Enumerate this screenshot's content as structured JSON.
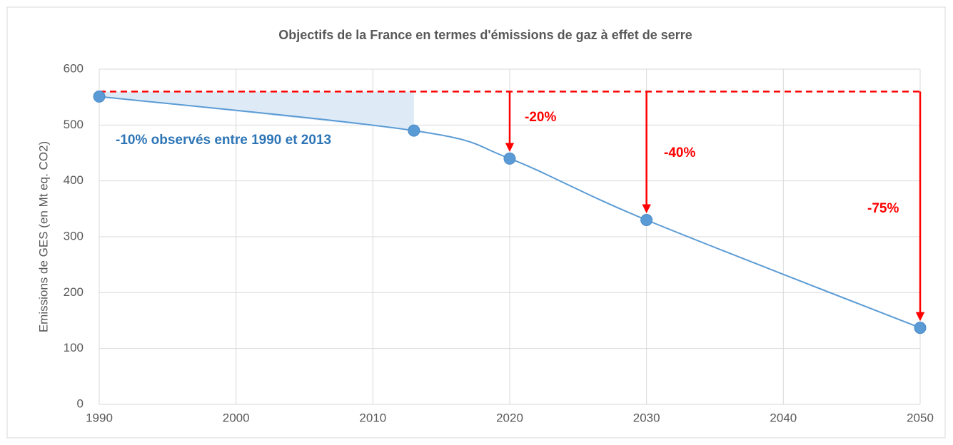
{
  "chart_data": {
    "type": "line",
    "title": "Objectifs de la France en termes d'émissions de gaz à effet de serre",
    "y_label": "Emissions de GES (en Mt eq. CO2)",
    "x": [
      1990,
      2013,
      2020,
      2030,
      2050
    ],
    "series": [
      {
        "name": "Emissions",
        "color": "#5b9bd5",
        "values": [
          551,
          490,
          440,
          330,
          137
        ]
      }
    ],
    "reference": 560,
    "reference_color": "#ff0000",
    "annotations": [
      "-10% observés entre 1990 et 2013",
      "-20%",
      "-40%",
      "-75%"
    ],
    "xlim": [
      1990,
      2050
    ],
    "xticks": [
      1990,
      2000,
      2010,
      2020,
      2030,
      2040,
      2050
    ],
    "ylim": [
      0,
      600
    ],
    "yticks": [
      0,
      100,
      200,
      300,
      400,
      500,
      600
    ],
    "grid": true
  }
}
